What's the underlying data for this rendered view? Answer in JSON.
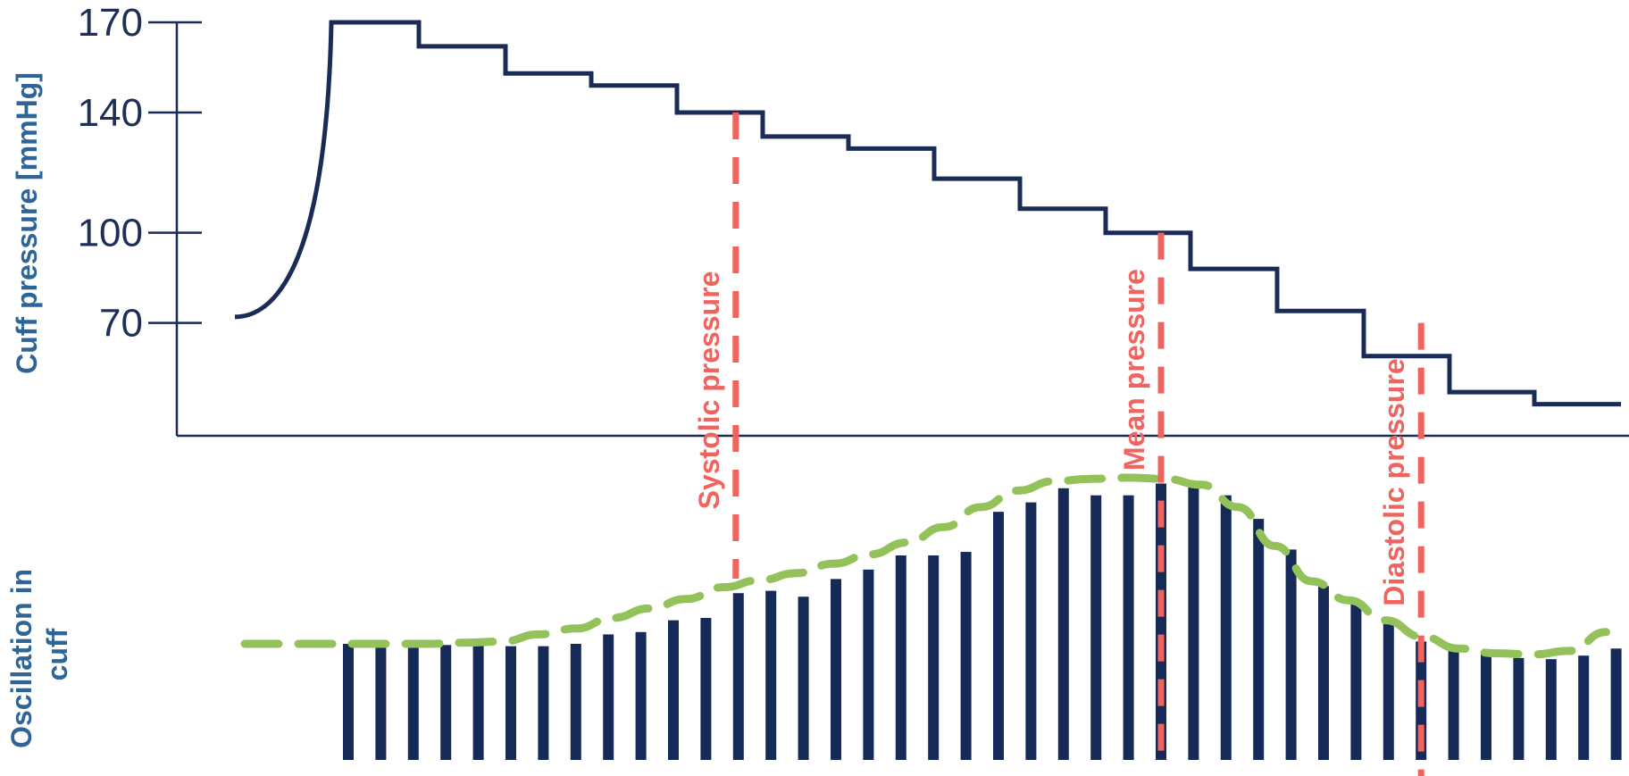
{
  "chart_data": [
    {
      "type": "line",
      "ylabel": "Cuff pressure [mmHg]",
      "yticks": [
        170,
        140,
        100,
        70
      ],
      "steps": [
        170,
        162,
        153,
        149,
        140,
        132,
        128,
        118,
        108,
        100,
        88,
        74,
        59,
        47,
        43
      ],
      "inflation_start": 72
    },
    {
      "type": "bar",
      "ylabel": "Oscillation in cuff",
      "values": [
        1.0,
        1.0,
        1.0,
        0.99,
        0.99,
        0.98,
        0.98,
        1.0,
        1.08,
        1.1,
        1.2,
        1.22,
        1.43,
        1.45,
        1.4,
        1.55,
        1.63,
        1.75,
        1.75,
        1.78,
        2.12,
        2.2,
        2.32,
        2.26,
        2.26,
        2.36,
        2.36,
        2.26,
        2.06,
        1.8,
        1.49,
        1.34,
        1.19,
        1.02,
        0.96,
        0.93,
        0.88,
        0.87,
        0.9,
        0.96
      ],
      "envelope": [
        1.0,
        1.0,
        1.0,
        1.0,
        1.0,
        1.0,
        1.01,
        1.02,
        1.08,
        1.13,
        1.22,
        1.3,
        1.38,
        1.48,
        1.54,
        1.6,
        1.68,
        1.76,
        1.86,
        1.99,
        2.16,
        2.3,
        2.38,
        2.4,
        2.41,
        2.4,
        2.35,
        2.16,
        1.83,
        1.53,
        1.37,
        1.2,
        1.06,
        0.96,
        0.92,
        0.91,
        0.94,
        1.1
      ]
    }
  ],
  "markers": [
    {
      "label": "Systolic pressure",
      "pressure": 140,
      "bar_index": 12
    },
    {
      "label": "Mean pressure",
      "pressure": 100,
      "bar_index": 25
    },
    {
      "label": "Diastolic pressure",
      "pressure": 70,
      "bar_index": 33
    }
  ],
  "colors": {
    "curve": "#1a2b55",
    "bars": "#152a57",
    "markers": "#f0645f",
    "envelope": "#93c15a",
    "axis_label": "#2f6596"
  }
}
